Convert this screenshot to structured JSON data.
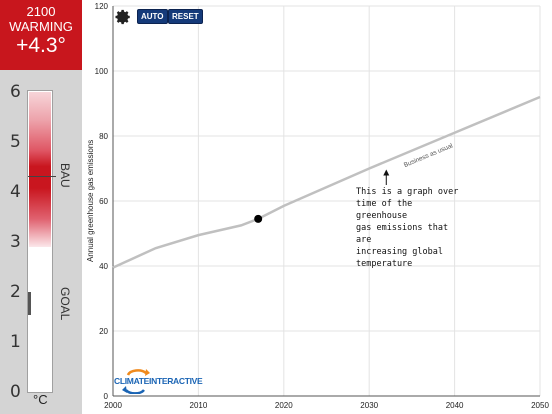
{
  "warming": {
    "year": "2100",
    "label": "WARMING",
    "value": "+4.3°"
  },
  "thermometer": {
    "ticks": [
      "6",
      "5",
      "4",
      "3",
      "2",
      "1",
      "0"
    ],
    "bau_label": "BAU",
    "goal_label": "GOAL",
    "unit": "°C",
    "current_value": 4.3,
    "goal_value": 1.5
  },
  "toolbar": {
    "settings_icon": "gear-icon",
    "auto_label": "AUTO",
    "reset_label": "RESET"
  },
  "annotation": {
    "lines": [
      "This is a graph over",
      "time of the greenhouse",
      "gas emissions that are",
      "increasing global",
      "temperature"
    ]
  },
  "logo": {
    "text_part1": "CLIMATE",
    "text_part2": "INTERACTIVE"
  },
  "colors": {
    "warming_box": "#c8161d",
    "line": "#c0c0c0",
    "buttons": "#153a7a",
    "logo_blue": "#1a64b4",
    "logo_orange": "#f08a1c"
  },
  "chart_data": {
    "type": "line",
    "ylabel": "Annual greenhouse gas emissions",
    "xlabel": "",
    "xlim": [
      2000,
      2050
    ],
    "ylim": [
      0,
      120
    ],
    "x_ticks": [
      2000,
      2010,
      2020,
      2030,
      2040,
      2050
    ],
    "y_ticks": [
      0,
      20,
      40,
      60,
      80,
      100,
      120
    ],
    "grid": true,
    "series": [
      {
        "name": "Business as usual",
        "x": [
          2000,
          2005,
          2010,
          2015,
          2017,
          2020,
          2030,
          2040,
          2050
        ],
        "y": [
          39.5,
          45.5,
          49.5,
          52.5,
          54.5,
          58.5,
          70,
          81,
          92
        ]
      }
    ],
    "marker": {
      "x": 2017,
      "y": 54.5
    },
    "annotation_arrow": {
      "x": 2032,
      "y": 70
    }
  }
}
